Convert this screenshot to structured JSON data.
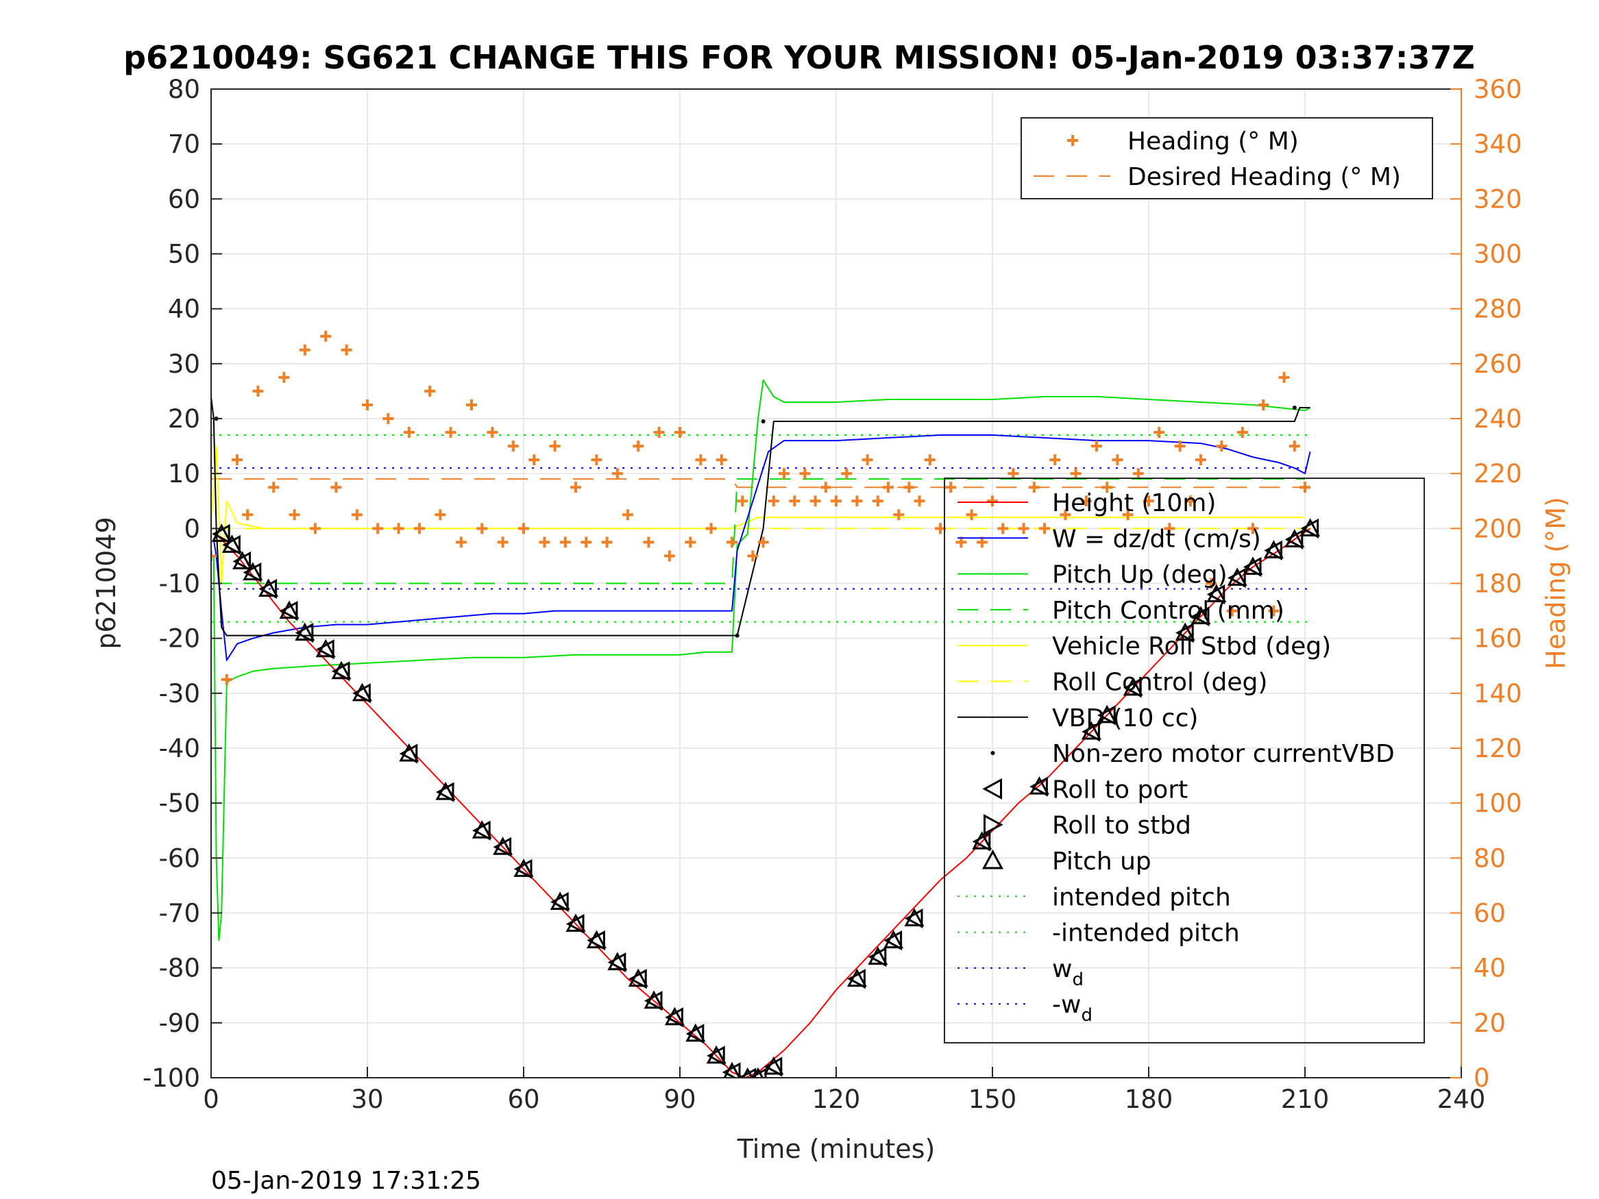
{
  "chart_data": {
    "type": "line",
    "title": "p6210049: SG621 CHANGE THIS FOR YOUR MISSION! 05-Jan-2019 03:37:37Z",
    "xlabel": "Time (minutes)",
    "ylabel": "p6210049",
    "ylabel_right": "Heading (°M)",
    "xlim": [
      0,
      240
    ],
    "ylim": [
      -100,
      80
    ],
    "ylim_right": [
      0,
      360
    ],
    "x_ticks": [
      0,
      30,
      60,
      90,
      120,
      150,
      180,
      210,
      240
    ],
    "y_ticks": [
      80,
      70,
      60,
      50,
      40,
      30,
      20,
      10,
      0,
      -10,
      -20,
      -30,
      -40,
      -50,
      -60,
      -70,
      -80,
      -90,
      -100
    ],
    "y_right_ticks": [
      360,
      340,
      320,
      300,
      280,
      260,
      240,
      220,
      200,
      180,
      160,
      140,
      120,
      100,
      80,
      60,
      40,
      20,
      0
    ],
    "grid": true,
    "footer": "05-Jan-2019 17:31:25",
    "legend_right": {
      "placement": "top-right",
      "entries": [
        "Heading (° M)",
        "Desired Heading (° M)"
      ]
    },
    "legend_main": {
      "placement": "right",
      "entries": [
        "Height (10m)",
        "W = dz/dt (cm/s)",
        "Pitch Up (deg)",
        "Pitch Control (mm)",
        "Vehicle Roll Stbd (deg)",
        "Roll Control (deg)",
        "VBD (10 cc)",
        "Non-zero motor currentVBD",
        "Roll to port",
        "Roll to stbd",
        "Pitch up",
        "intended pitch",
        "-intended pitch",
        "w_d",
        "-w_d"
      ]
    },
    "colors": {
      "heading": "#f07f26",
      "depth": "#ff0000",
      "w": "#0000ff",
      "pitch": "#00e000",
      "roll": "#ffff00",
      "vbd": "#000000",
      "intended": "#00e000",
      "wd": "#0000ff"
    },
    "series": [
      {
        "name": "Height (10m)",
        "x": [
          1,
          5,
          10,
          15,
          20,
          25,
          30,
          35,
          40,
          45,
          50,
          55,
          60,
          65,
          70,
          75,
          80,
          85,
          90,
          95,
          100,
          102.5,
          105,
          110,
          115,
          120,
          125,
          130,
          135,
          140,
          145,
          150,
          155,
          160,
          165,
          170,
          175,
          180,
          185,
          190,
          195,
          200,
          205,
          211
        ],
        "y": [
          -1,
          -5,
          -11,
          -17,
          -22,
          -27,
          -32,
          -37,
          -42,
          -47,
          -52,
          -57,
          -62,
          -67,
          -72,
          -77,
          -82,
          -86,
          -90,
          -94,
          -99,
          -100,
          -99,
          -95,
          -90,
          -84,
          -79,
          -74,
          -69,
          -64,
          -60,
          -55,
          -50,
          -46,
          -41,
          -36,
          -31,
          -26,
          -21,
          -16,
          -11,
          -7,
          -4,
          0
        ]
      },
      {
        "name": "W = dz/dt (cm/s)",
        "x": [
          0.5,
          1,
          2,
          3,
          5,
          8,
          12,
          18,
          24,
          30,
          36,
          42,
          48,
          54,
          60,
          66,
          72,
          78,
          84,
          90,
          95,
          100,
          101,
          103,
          105,
          107,
          110,
          120,
          130,
          140,
          150,
          160,
          170,
          180,
          190,
          195,
          200,
          205,
          208,
          210,
          211
        ],
        "y": [
          -2,
          -5,
          -15,
          -24,
          -21,
          -20,
          -19,
          -18,
          -17.5,
          -17.5,
          -17,
          -16.5,
          -16,
          -15.5,
          -15.5,
          -15,
          -15,
          -15,
          -15,
          -15,
          -15,
          -15,
          -4,
          2,
          8,
          14,
          16,
          16,
          16.5,
          17,
          17,
          16.5,
          16,
          16,
          15.5,
          14.5,
          13,
          12,
          11,
          10,
          14
        ]
      },
      {
        "name": "Pitch Up (deg)",
        "x": [
          0.5,
          1,
          1.5,
          2,
          3,
          5,
          8,
          12,
          20,
          30,
          40,
          50,
          60,
          70,
          80,
          90,
          95,
          100,
          101,
          103,
          105,
          106,
          108,
          110,
          120,
          130,
          140,
          150,
          160,
          170,
          180,
          190,
          200,
          205,
          210,
          211
        ],
        "y": [
          -5,
          -60,
          -75,
          -70,
          -28,
          -27,
          -26,
          -25.5,
          -25,
          -24.5,
          -24,
          -23.5,
          -23.5,
          -23,
          -23,
          -23,
          -22.5,
          -22.5,
          -3,
          -1,
          20,
          27,
          24,
          23,
          23,
          23.5,
          23.5,
          23.5,
          24,
          24,
          23.5,
          23,
          22.5,
          22,
          21.5,
          22
        ]
      },
      {
        "name": "Pitch Control (mm)",
        "x": [
          0,
          10,
          20,
          40,
          60,
          80,
          100,
          101,
          105,
          120,
          140,
          160,
          180,
          200,
          210
        ],
        "y": [
          -10,
          -10,
          -10,
          -10,
          -10,
          -10,
          -10,
          9,
          9,
          9,
          9,
          9,
          9,
          9,
          9
        ]
      },
      {
        "name": "Vehicle Roll Stbd (deg)",
        "x": [
          0,
          1,
          2,
          3,
          5,
          10,
          20,
          30,
          40,
          50,
          60,
          70,
          80,
          90,
          100,
          105,
          110,
          120,
          130,
          140,
          150,
          160,
          170,
          180,
          190,
          200,
          210
        ],
        "y": [
          0,
          15,
          -10,
          5,
          1,
          0,
          0,
          0,
          0,
          0,
          0,
          0,
          0,
          0,
          0,
          2,
          2,
          2,
          2,
          2,
          2,
          2,
          2,
          2,
          2,
          2,
          2
        ]
      },
      {
        "name": "Roll Control (deg)",
        "x": [
          0,
          100,
          101,
          211
        ],
        "y": [
          0,
          0,
          0,
          0
        ]
      },
      {
        "name": "VBD (10 cc)",
        "x": [
          0,
          0.5,
          1,
          2,
          3,
          100,
          101,
          106,
          108,
          200,
          208,
          209,
          211
        ],
        "y": [
          24,
          20,
          0,
          -18,
          -19.5,
          -19.5,
          -19.5,
          0,
          19.5,
          19.5,
          19.5,
          22,
          22
        ]
      },
      {
        "name": "Heading (° M)",
        "x": [
          0,
          3,
          5,
          7,
          9,
          12,
          14,
          16,
          18,
          20,
          22,
          24,
          26,
          28,
          30,
          32,
          34,
          36,
          38,
          40,
          42,
          44,
          46,
          48,
          50,
          52,
          54,
          56,
          58,
          60,
          62,
          64,
          66,
          68,
          70,
          72,
          74,
          76,
          78,
          80,
          82,
          84,
          86,
          88,
          90,
          92,
          94,
          96,
          98,
          100,
          102,
          104,
          106,
          108,
          110,
          112,
          114,
          116,
          118,
          120,
          122,
          124,
          126,
          128,
          130,
          132,
          134,
          136,
          138,
          140,
          142,
          144,
          146,
          148,
          150,
          152,
          154,
          156,
          158,
          160,
          162,
          164,
          166,
          168,
          170,
          172,
          174,
          176,
          178,
          180,
          182,
          184,
          186,
          188,
          190,
          192,
          194,
          196,
          198,
          200,
          202,
          204,
          206,
          208,
          210
        ],
        "y": [
          190,
          145,
          225,
          205,
          250,
          215,
          255,
          205,
          265,
          200,
          270,
          215,
          265,
          205,
          245,
          200,
          240,
          200,
          235,
          200,
          250,
          205,
          235,
          195,
          245,
          200,
          235,
          195,
          230,
          200,
          225,
          195,
          230,
          195,
          215,
          195,
          225,
          195,
          220,
          205,
          230,
          195,
          235,
          190,
          235,
          195,
          225,
          200,
          225,
          195,
          210,
          190,
          195,
          210,
          220,
          210,
          220,
          210,
          215,
          210,
          220,
          210,
          225,
          210,
          215,
          205,
          215,
          210,
          225,
          200,
          215,
          195,
          205,
          195,
          210,
          200,
          220,
          200,
          215,
          200,
          225,
          205,
          220,
          210,
          230,
          215,
          225,
          205,
          220,
          210,
          235,
          200,
          230,
          210,
          225,
          180,
          230,
          170,
          235,
          200,
          245,
          170,
          255,
          230,
          215
        ]
      },
      {
        "name": "Desired Heading (° M)",
        "x": [
          0,
          100,
          101,
          211
        ],
        "y": [
          218,
          218,
          215,
          215
        ]
      },
      {
        "name": "intended pitch",
        "x": [
          0,
          211
        ],
        "y": [
          17,
          17
        ]
      },
      {
        "name": "-intended pitch",
        "x": [
          0,
          211
        ],
        "y": [
          -17,
          -17
        ]
      },
      {
        "name": "w_d",
        "x": [
          0,
          211
        ],
        "y": [
          11,
          11
        ]
      },
      {
        "name": "-w_d",
        "x": [
          0,
          211
        ],
        "y": [
          -11,
          -11
        ]
      },
      {
        "name": "Roll to port",
        "x": [
          2,
          4,
          6,
          8,
          11,
          15,
          18,
          22,
          25,
          29,
          38,
          45,
          52,
          56,
          60,
          67,
          70,
          74,
          78,
          82,
          85,
          89,
          93,
          97,
          100,
          103,
          105,
          108,
          124,
          128,
          131,
          135,
          148,
          159,
          169,
          172,
          177,
          187,
          190,
          193,
          197,
          200,
          204,
          208,
          211
        ],
        "y": [
          -1,
          -3,
          -6,
          -8,
          -11,
          -15,
          -19,
          -22,
          -26,
          -30,
          -41,
          -48,
          -55,
          -58,
          -62,
          -68,
          -72,
          -75,
          -79,
          -82,
          -86,
          -89,
          -92,
          -96,
          -99,
          -100,
          -100,
          -98,
          -82,
          -78,
          -75,
          -71,
          -57,
          -47,
          -37,
          -34,
          -29,
          -19,
          -16,
          -12,
          -9,
          -7,
          -4,
          -2,
          0
        ]
      },
      {
        "name": "Non-zero motor currentVBD",
        "x": [
          1,
          101,
          106,
          208
        ],
        "y": [
          20,
          -19.5,
          19.5,
          22
        ]
      }
    ]
  }
}
